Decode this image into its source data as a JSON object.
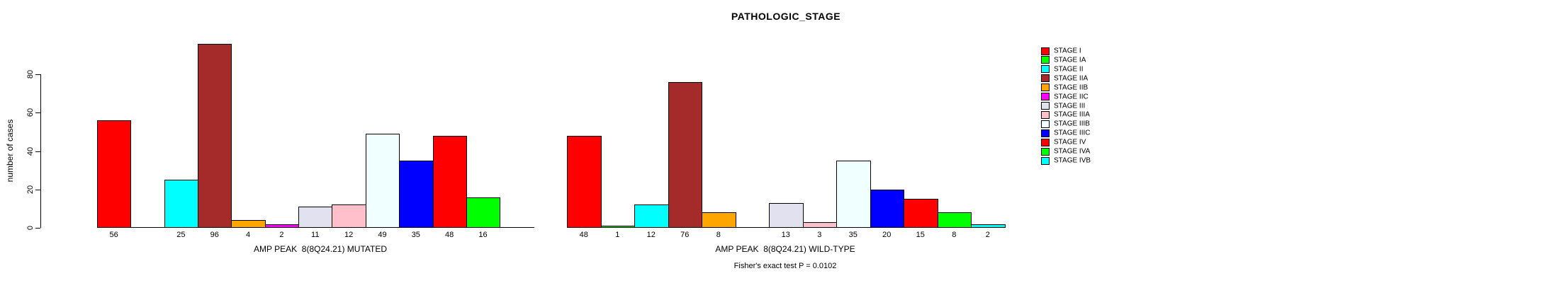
{
  "title": "PATHOLOGIC_STAGE",
  "y_axis": {
    "label": "number of cases",
    "ticks": [
      0,
      20,
      40,
      60,
      80
    ]
  },
  "legend": {
    "entries": [
      {
        "label": "STAGE I",
        "color": "#FF0000"
      },
      {
        "label": "STAGE IA",
        "color": "#00FF00"
      },
      {
        "label": "STAGE II",
        "color": "#00FFFF"
      },
      {
        "label": "STAGE IIA",
        "color": "#A52A2A"
      },
      {
        "label": "STAGE IIB",
        "color": "#FFA500"
      },
      {
        "label": "STAGE IIC",
        "color": "#FF00FF"
      },
      {
        "label": "STAGE III",
        "color": "#E1E1F0"
      },
      {
        "label": "STAGE IIIA",
        "color": "#FFC0CB"
      },
      {
        "label": "STAGE IIIB",
        "color": "#F0FFFF"
      },
      {
        "label": "STAGE IIIC",
        "color": "#0000FF"
      },
      {
        "label": "STAGE IV",
        "color": "#FF0000"
      },
      {
        "label": "STAGE IVA",
        "color": "#00FF00"
      },
      {
        "label": "STAGE IVB",
        "color": "#00FFFF"
      }
    ]
  },
  "chart_data": [
    {
      "type": "bar",
      "panel": "mutated",
      "xlabel": "AMP PEAK  8(8Q24.21) MUTATED",
      "ylabel": "number of cases",
      "ylim": [
        0,
        96
      ],
      "grid": false,
      "categories": [
        "STAGE I",
        "STAGE IA",
        "STAGE II",
        "STAGE IIA",
        "STAGE IIB",
        "STAGE IIC",
        "STAGE III",
        "STAGE IIIA",
        "STAGE IIIB",
        "STAGE IIIC",
        "STAGE IV",
        "STAGE IVA",
        "STAGE IVB"
      ],
      "values": [
        56,
        0,
        25,
        96,
        4,
        2,
        11,
        12,
        49,
        35,
        48,
        16,
        0
      ]
    },
    {
      "type": "bar",
      "panel": "wild-type",
      "xlabel": "AMP PEAK  8(8Q24.21) WILD-TYPE",
      "ylabel": "number of cases",
      "ylim": [
        0,
        76
      ],
      "grid": false,
      "categories": [
        "STAGE I",
        "STAGE IA",
        "STAGE II",
        "STAGE IIA",
        "STAGE IIB",
        "STAGE IIC",
        "STAGE III",
        "STAGE IIIA",
        "STAGE IIIB",
        "STAGE IIIC",
        "STAGE IV",
        "STAGE IVA",
        "STAGE IVB"
      ],
      "values": [
        48,
        1,
        12,
        76,
        8,
        0,
        13,
        3,
        35,
        20,
        15,
        8,
        2
      ]
    }
  ],
  "footer": {
    "fisher_text": "Fisher's exact test P = 0.0102"
  }
}
